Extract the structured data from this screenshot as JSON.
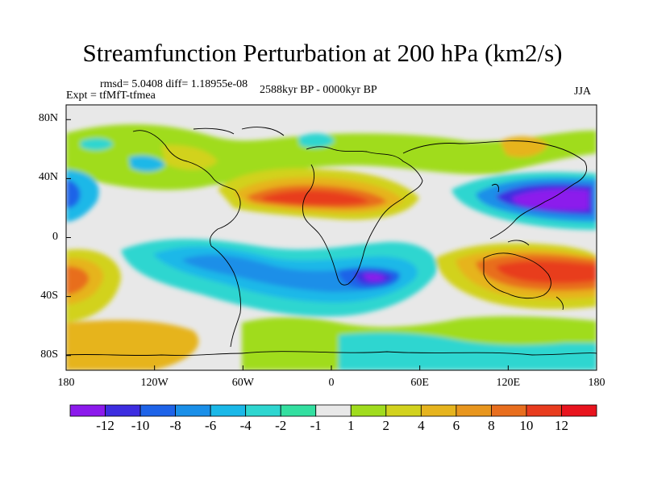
{
  "title": "Streamfunction Perturbation at 200 hPa (km2/s)",
  "stats_line": "rmsd= 5.0408 diff= 1.18955e-08",
  "experiment_label": "Expt = tfMfT-tfmea",
  "period_label": "2588kyr BP - 0000kyr BP",
  "season_label": "JJA",
  "map": {
    "lon_range": [
      -180,
      180
    ],
    "lat_range": [
      -90,
      90
    ],
    "background_color": "#e8e8e8",
    "coastline_color": "#000000",
    "x_ticks": [
      "180",
      "120W",
      "60W",
      "0",
      "60E",
      "120E",
      "180"
    ],
    "y_ticks": [
      "80N",
      "40N",
      "0",
      "40S",
      "80S"
    ]
  },
  "colorbar": {
    "labels": [
      "-12",
      "-10",
      "-8",
      "-6",
      "-4",
      "-2",
      "-1",
      "1",
      "2",
      "4",
      "6",
      "8",
      "10",
      "12"
    ],
    "colors": [
      "#8c1aec",
      "#3d2de0",
      "#1e63e8",
      "#1a8fe8",
      "#1ab8e8",
      "#2ed6d0",
      "#33dfa0",
      "#e8e8e8",
      "#a0dc1e",
      "#d2d21e",
      "#e6b41e",
      "#e8961e",
      "#e86e1e",
      "#e83c1e",
      "#e8141e"
    ]
  }
}
